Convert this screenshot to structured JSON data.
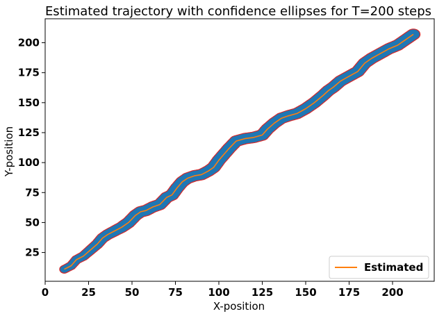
{
  "chart_data": {
    "type": "line",
    "title": "Estimated trajectory with confidence ellipses for T=200 steps",
    "xlabel": "X-position",
    "ylabel": "Y-position",
    "xlim": [
      0,
      224
    ],
    "ylim": [
      1,
      220
    ],
    "xticks": [
      0,
      25,
      50,
      75,
      100,
      125,
      150,
      175,
      200
    ],
    "yticks": [
      25,
      50,
      75,
      100,
      125,
      150,
      175,
      200
    ],
    "grid": false,
    "legend": {
      "position": "bottom-right",
      "entries": [
        "Estimated"
      ]
    },
    "series": [
      {
        "name": "Estimated",
        "color": "#ff7f0e",
        "x": [
          11,
          15,
          18,
          22,
          26,
          30,
          33,
          36,
          40,
          44,
          48,
          52,
          55,
          58,
          62,
          66,
          70,
          73,
          76,
          79,
          82,
          86,
          90,
          94,
          97,
          100,
          103,
          106,
          110,
          115,
          120,
          125,
          128,
          132,
          136,
          140,
          145,
          150,
          155,
          160,
          163,
          166,
          170,
          175,
          180,
          184,
          188,
          193,
          198,
          203,
          208,
          212
        ],
        "y": [
          11,
          14,
          19,
          22,
          27,
          32,
          37,
          40,
          43,
          46,
          50,
          56,
          59,
          60,
          63,
          65,
          71,
          73,
          79,
          84,
          87,
          89,
          90,
          93,
          96,
          102,
          107,
          112,
          118,
          120,
          121,
          123,
          128,
          133,
          137,
          139,
          141,
          145,
          150,
          156,
          160,
          163,
          168,
          172,
          176,
          183,
          187,
          191,
          195,
          198,
          203,
          207
        ]
      }
    ],
    "confidence_ellipses": {
      "fill": "#1f77b4",
      "edge": "#d62728"
    }
  }
}
